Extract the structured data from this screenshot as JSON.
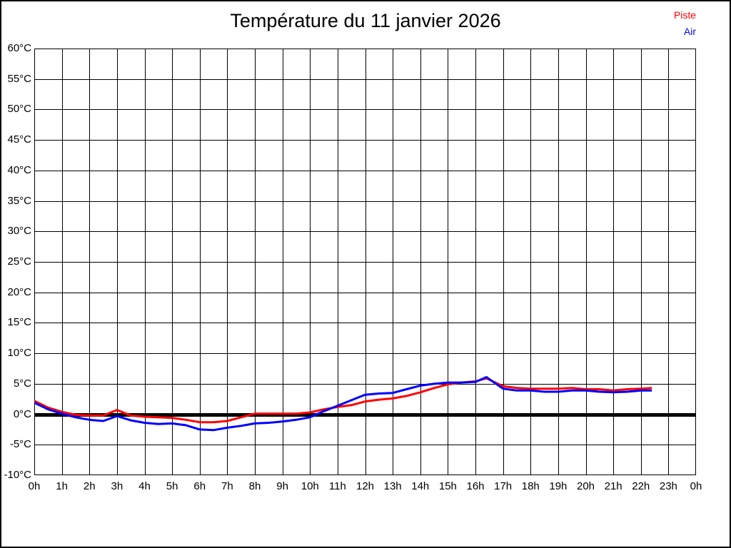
{
  "chart_data": {
    "type": "line",
    "title": "Température du 11 janvier 2026",
    "xlabel": "",
    "ylabel": "",
    "xlim": [
      0,
      24
    ],
    "ylim": [
      -10,
      60
    ],
    "y_tick_step": 5,
    "grid": true,
    "zero_line_at": 0,
    "legend_position": "top-right",
    "x_tick_labels": [
      "0h",
      "1h",
      "2h",
      "3h",
      "4h",
      "5h",
      "6h",
      "7h",
      "8h",
      "9h",
      "10h",
      "11h",
      "12h",
      "13h",
      "14h",
      "15h",
      "16h",
      "17h",
      "18h",
      "19h",
      "20h",
      "21h",
      "22h",
      "23h",
      "0h"
    ],
    "y_tick_labels": [
      "60°C",
      "55°C",
      "50°C",
      "45°C",
      "40°C",
      "35°C",
      "30°C",
      "25°C",
      "20°C",
      "15°C",
      "10°C",
      "5°C",
      "0°C",
      "-5°C",
      "-10°C"
    ],
    "series": [
      {
        "name": "Piste",
        "color": "#ff0000",
        "points": [
          [
            0,
            2.2
          ],
          [
            0.5,
            1.1
          ],
          [
            1,
            0.4
          ],
          [
            1.5,
            -0.1
          ],
          [
            2,
            -0.2
          ],
          [
            2.5,
            -0.2
          ],
          [
            3,
            0.7
          ],
          [
            3.5,
            -0.2
          ],
          [
            4,
            -0.4
          ],
          [
            4.5,
            -0.5
          ],
          [
            5,
            -0.6
          ],
          [
            5.5,
            -0.9
          ],
          [
            6,
            -1.3
          ],
          [
            6.5,
            -1.3
          ],
          [
            7,
            -1.1
          ],
          [
            7.5,
            -0.5
          ],
          [
            8,
            0.1
          ],
          [
            8.5,
            0.1
          ],
          [
            9,
            0.1
          ],
          [
            9.5,
            0.1
          ],
          [
            10,
            0.3
          ],
          [
            10.5,
            0.8
          ],
          [
            11,
            1.2
          ],
          [
            11.5,
            1.5
          ],
          [
            12,
            2.1
          ],
          [
            12.5,
            2.4
          ],
          [
            13,
            2.6
          ],
          [
            13.5,
            3.0
          ],
          [
            14,
            3.6
          ],
          [
            14.5,
            4.3
          ],
          [
            15,
            4.9
          ],
          [
            15.5,
            5.2
          ],
          [
            16,
            5.4
          ],
          [
            16.4,
            5.9
          ],
          [
            17,
            4.6
          ],
          [
            17.5,
            4.3
          ],
          [
            18,
            4.2
          ],
          [
            18.5,
            4.2
          ],
          [
            19,
            4.2
          ],
          [
            19.5,
            4.3
          ],
          [
            20,
            4.1
          ],
          [
            20.5,
            4.1
          ],
          [
            21,
            3.9
          ],
          [
            21.5,
            4.1
          ],
          [
            22,
            4.2
          ],
          [
            22.4,
            4.3
          ]
        ]
      },
      {
        "name": "Air",
        "color": "#0000ff",
        "points": [
          [
            0,
            1.9
          ],
          [
            0.5,
            0.8
          ],
          [
            1,
            0.1
          ],
          [
            1.5,
            -0.5
          ],
          [
            2,
            -0.9
          ],
          [
            2.5,
            -1.1
          ],
          [
            3,
            -0.3
          ],
          [
            3.5,
            -1.0
          ],
          [
            4,
            -1.4
          ],
          [
            4.5,
            -1.6
          ],
          [
            5,
            -1.5
          ],
          [
            5.5,
            -1.8
          ],
          [
            6,
            -2.5
          ],
          [
            6.5,
            -2.6
          ],
          [
            7,
            -2.2
          ],
          [
            7.5,
            -1.9
          ],
          [
            8,
            -1.5
          ],
          [
            8.5,
            -1.4
          ],
          [
            9,
            -1.2
          ],
          [
            9.5,
            -0.9
          ],
          [
            10,
            -0.5
          ],
          [
            10.5,
            0.5
          ],
          [
            11,
            1.4
          ],
          [
            11.5,
            2.3
          ],
          [
            12,
            3.2
          ],
          [
            12.5,
            3.4
          ],
          [
            13,
            3.5
          ],
          [
            13.5,
            4.1
          ],
          [
            14,
            4.7
          ],
          [
            14.5,
            5.0
          ],
          [
            15,
            5.2
          ],
          [
            15.5,
            5.2
          ],
          [
            16,
            5.3
          ],
          [
            16.4,
            6.1
          ],
          [
            17,
            4.2
          ],
          [
            17.5,
            3.9
          ],
          [
            18,
            3.9
          ],
          [
            18.5,
            3.7
          ],
          [
            19,
            3.7
          ],
          [
            19.5,
            3.9
          ],
          [
            20,
            3.9
          ],
          [
            20.5,
            3.7
          ],
          [
            21,
            3.6
          ],
          [
            21.5,
            3.7
          ],
          [
            22,
            3.9
          ],
          [
            22.4,
            3.9
          ]
        ]
      }
    ],
    "colors": {
      "grid": "#000000",
      "zero_line": "#000000",
      "background": "#ffffff"
    }
  }
}
